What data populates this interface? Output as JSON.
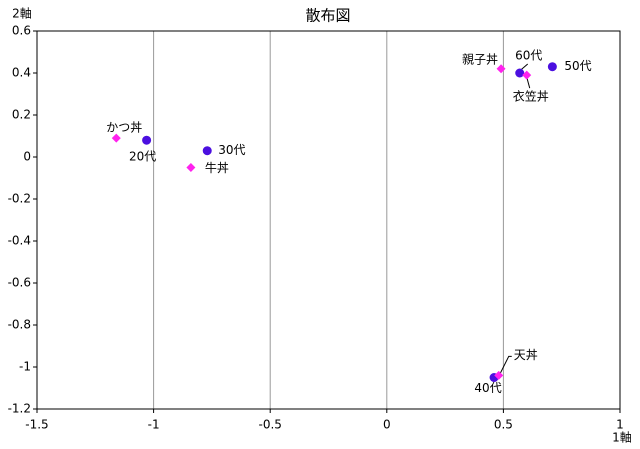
{
  "chart_data": {
    "type": "scatter",
    "title": "散布図",
    "x_label": "1軸",
    "y_label": "2軸",
    "xlim": [
      -1.5,
      1
    ],
    "xticks": [
      -1.5,
      -1,
      -0.5,
      0,
      0.5,
      1
    ],
    "ylim": [
      -1.2,
      0.6
    ],
    "yticks": [
      -1.2,
      -1,
      -0.8,
      -0.6,
      -0.4,
      -0.2,
      0,
      0.2,
      0.4,
      0.6
    ],
    "grid": "x",
    "series": [
      {
        "color": "#4b0fe0",
        "marker": "circle",
        "x": [
          -1.03,
          -0.77,
          0.46,
          0.71,
          0.57
        ],
        "values": [
          0.08,
          0.03,
          -1.05,
          0.43,
          0.4
        ],
        "labels": [
          "20代",
          "30代",
          "40代",
          "50代",
          "60代"
        ]
      },
      {
        "color": "#ff22ee",
        "marker": "diamond",
        "x": [
          -1.16,
          -0.84,
          0.49,
          0.6,
          0.48
        ],
        "values": [
          0.09,
          -0.05,
          0.42,
          0.39,
          -1.04
        ],
        "labels": [
          "かつ丼",
          "牛丼",
          "親子丼",
          "衣笠丼",
          "天丼"
        ]
      }
    ]
  }
}
